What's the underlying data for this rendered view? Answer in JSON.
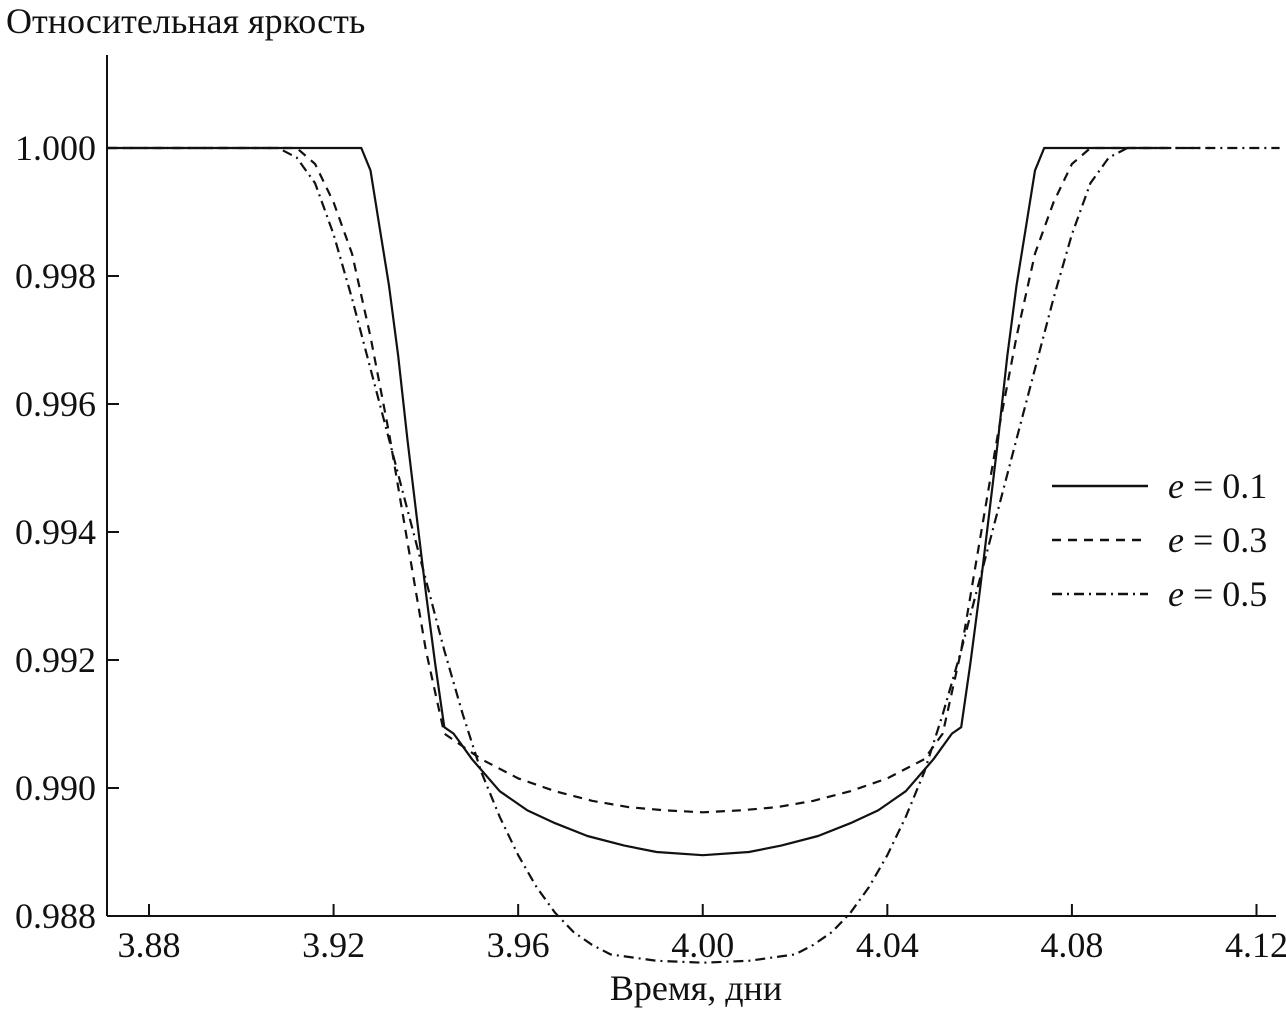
{
  "chart_data": {
    "type": "line",
    "title": "",
    "ylabel": "Относительная яркость",
    "xlabel": "Время, дни",
    "xlim": [
      3.871,
      4.13
    ],
    "ylim": [
      0.988,
      1.0015
    ],
    "xticks": [
      "3.88",
      "3.92",
      "3.96",
      "4.00",
      "4.04",
      "4.08",
      "4.12"
    ],
    "yticks": [
      "1.000",
      "0.998",
      "0.996",
      "0.994",
      "0.992",
      "0.990",
      "0.988"
    ],
    "grid": false,
    "legend_position": "right",
    "series": [
      {
        "name": "e = 0.1",
        "legend_var": "e",
        "legend_rest": " = 0.1",
        "style": "solid",
        "x": [
          3.871,
          3.9,
          3.91,
          3.92,
          3.924,
          3.926,
          3.928,
          3.93,
          3.932,
          3.934,
          3.936,
          3.938,
          3.94,
          3.942,
          3.944,
          3.946,
          3.95,
          3.956,
          3.962,
          3.968,
          3.975,
          3.983,
          3.99,
          4.0,
          4.01,
          4.017,
          4.025,
          4.032,
          4.038,
          4.044,
          4.05,
          4.054,
          4.056,
          4.058,
          4.06,
          4.062,
          4.064,
          4.066,
          4.068,
          4.07,
          4.072,
          4.074,
          4.076,
          4.08,
          4.09,
          4.1
        ],
        "y": [
          1.0,
          1.0,
          1.0,
          1.0,
          1.0,
          1.0,
          0.99965,
          0.99875,
          0.99785,
          0.99675,
          0.99545,
          0.99425,
          0.99305,
          0.99195,
          0.99095,
          0.99085,
          0.99045,
          0.98995,
          0.98965,
          0.98945,
          0.98925,
          0.9891,
          0.989,
          0.98895,
          0.989,
          0.9891,
          0.98925,
          0.98945,
          0.98965,
          0.98995,
          0.99045,
          0.99085,
          0.99095,
          0.99195,
          0.99305,
          0.99425,
          0.99545,
          0.99675,
          0.99785,
          0.99875,
          0.99965,
          1.0,
          1.0,
          1.0,
          1.0,
          1.0
        ]
      },
      {
        "name": "e = 0.3",
        "legend_var": "e",
        "legend_rest": " = 0.3",
        "style": "dashed",
        "x": [
          3.871,
          3.9,
          3.912,
          3.916,
          3.92,
          3.924,
          3.928,
          3.932,
          3.936,
          3.94,
          3.944,
          3.948,
          3.952,
          3.96,
          3.968,
          3.976,
          3.984,
          3.992,
          4.0,
          4.008,
          4.016,
          4.024,
          4.032,
          4.04,
          4.048,
          4.052,
          4.056,
          4.06,
          4.064,
          4.068,
          4.072,
          4.076,
          4.08,
          4.084,
          4.088,
          4.092,
          4.11
        ],
        "y": [
          1.0,
          1.0,
          1.0,
          0.99975,
          0.99915,
          0.99835,
          0.99705,
          0.99555,
          0.99385,
          0.99215,
          0.99085,
          0.99065,
          0.99045,
          0.99015,
          0.98995,
          0.9898,
          0.9897,
          0.98965,
          0.98962,
          0.98965,
          0.9897,
          0.9898,
          0.98995,
          0.99015,
          0.99045,
          0.99085,
          0.99215,
          0.99385,
          0.99555,
          0.99705,
          0.99835,
          0.99915,
          0.99975,
          1.0,
          1.0,
          1.0,
          1.0
        ]
      },
      {
        "name": "e = 0.5",
        "legend_var": "e",
        "legend_rest": " = 0.5",
        "style": "dashdot",
        "x": [
          3.871,
          3.9,
          3.908,
          3.912,
          3.916,
          3.92,
          3.924,
          3.928,
          3.932,
          3.936,
          3.94,
          3.944,
          3.948,
          3.952,
          3.956,
          3.96,
          3.964,
          3.968,
          3.972,
          3.976,
          3.98,
          3.99,
          4.0,
          4.01,
          4.02,
          4.024,
          4.028,
          4.032,
          4.036,
          4.04,
          4.044,
          4.048,
          4.052,
          4.056,
          4.06,
          4.064,
          4.068,
          4.072,
          4.076,
          4.08,
          4.084,
          4.088,
          4.092,
          4.1,
          4.125
        ],
        "y": [
          1.0,
          1.0,
          1.0,
          0.99985,
          0.99945,
          0.99865,
          0.99765,
          0.99655,
          0.99545,
          0.99435,
          0.99325,
          0.99215,
          0.99115,
          0.99025,
          0.98955,
          0.98895,
          0.98845,
          0.98805,
          0.98775,
          0.98755,
          0.9874,
          0.9873,
          0.98727,
          0.9873,
          0.9874,
          0.98755,
          0.98775,
          0.98805,
          0.98845,
          0.98895,
          0.98955,
          0.99025,
          0.99115,
          0.99215,
          0.99325,
          0.99435,
          0.99545,
          0.99655,
          0.99765,
          0.99865,
          0.99945,
          0.99985,
          1.0,
          1.0,
          1.0
        ]
      }
    ]
  }
}
